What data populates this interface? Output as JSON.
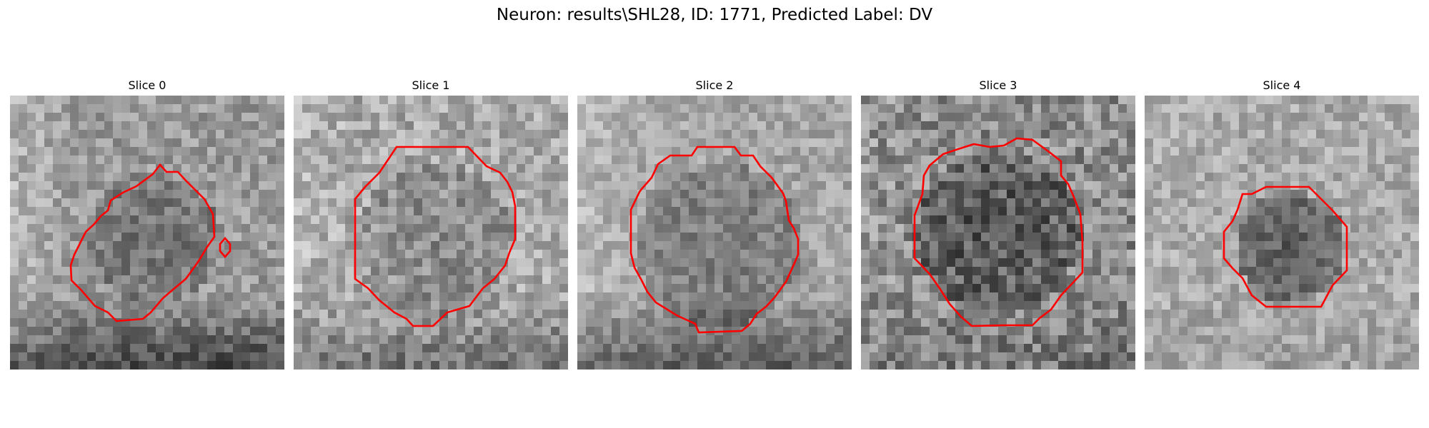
{
  "figure": {
    "title": "Neuron: results\\SHL28, ID: 1771, Predicted Label: DV"
  },
  "panels": [
    {
      "title": "Slice 0",
      "style": {
        "base": 155,
        "blob_dark": 40,
        "blob_cx": 0.52,
        "blob_cy": 0.52,
        "blob_r": 0.24,
        "bottom_dark": 85,
        "left_light": 25,
        "noise": 34
      }
    },
    {
      "title": "Slice 1",
      "style": {
        "base": 170,
        "blob_dark": 30,
        "blob_cx": 0.52,
        "blob_cy": 0.52,
        "blob_r": 0.28,
        "bottom_dark": 55,
        "left_light": 10,
        "noise": 40
      }
    },
    {
      "title": "Slice 2",
      "style": {
        "base": 165,
        "blob_dark": 45,
        "blob_cx": 0.52,
        "blob_cy": 0.55,
        "blob_r": 0.3,
        "bottom_dark": 75,
        "left_light": 20,
        "noise": 30
      }
    },
    {
      "title": "Slice 3",
      "style": {
        "base": 140,
        "blob_dark": 55,
        "blob_cx": 0.5,
        "blob_cy": 0.5,
        "blob_r": 0.3,
        "bottom_dark": 20,
        "left_light": 10,
        "noise": 48
      }
    },
    {
      "title": "Slice 4",
      "style": {
        "base": 170,
        "blob_dark": 80,
        "blob_cx": 0.53,
        "blob_cy": 0.55,
        "blob_r": 0.2,
        "bottom_dark": 10,
        "left_light": 5,
        "noise": 32
      }
    }
  ],
  "contour_color": "#ff0000"
}
